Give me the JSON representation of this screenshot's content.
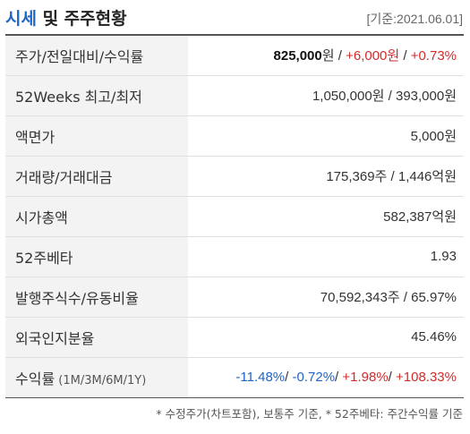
{
  "title": {
    "part1": "시세",
    "part2": " 및 주주현황"
  },
  "base_date": "[기준:2021.06.01]",
  "rows": {
    "price": {
      "label": "주가/전일대비/수익률",
      "price": "825,000",
      "price_unit": "원",
      "sep1": " / ",
      "change": "+6,000원",
      "sep2": " / ",
      "rate": "+0.73%"
    },
    "week52": {
      "label": "52Weeks 최고/최저",
      "value": "1,050,000원 / 393,000원"
    },
    "face": {
      "label": "액면가",
      "value": "5,000원"
    },
    "volume": {
      "label": "거래량/거래대금",
      "value": "175,369주 / 1,446억원"
    },
    "marketcap": {
      "label": "시가총액",
      "value": "582,387억원"
    },
    "beta": {
      "label": "52주베타",
      "value": "1.93"
    },
    "shares": {
      "label": "발행주식수/유동비율",
      "value": "70,592,343주 / 65.97%"
    },
    "foreign": {
      "label": "외국인지분율",
      "value": "45.46%"
    },
    "returns": {
      "label": "수익률",
      "label_small": " (1M/3M/6M/1Y)",
      "r1m": "-11.48%",
      "s1": "/ ",
      "r3m": "-0.72%",
      "s2": "/ ",
      "r6m": "+1.98%",
      "s3": "/ ",
      "r1y": "+108.33%"
    }
  },
  "footnote": "* 수정주가(차트포함), 보통주 기준, * 52주베타: 주간수익률 기준",
  "colors": {
    "up": "#d12b2b",
    "down": "#1e64c8",
    "accent": "#1e64c8"
  }
}
